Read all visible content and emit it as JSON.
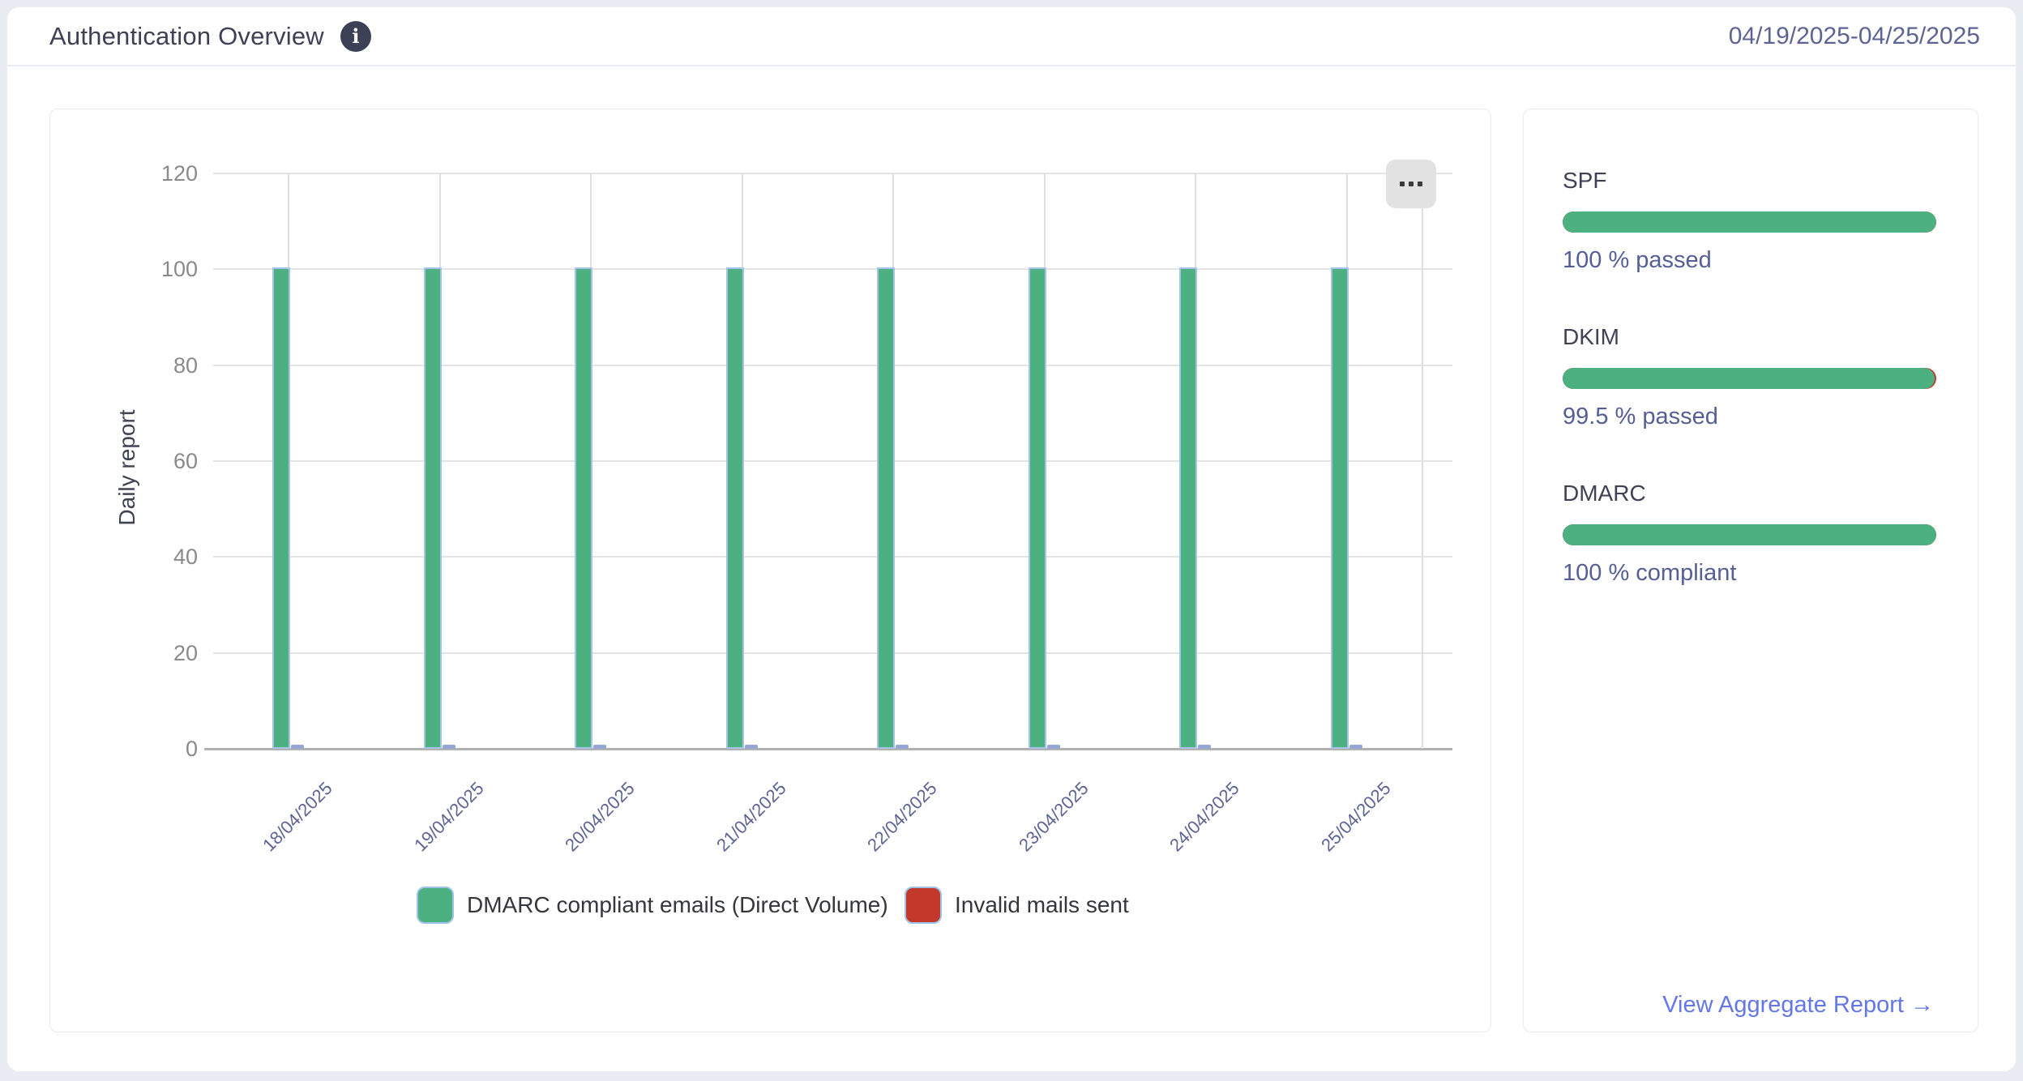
{
  "header": {
    "title": "Authentication Overview",
    "info_glyph": "i",
    "date_range": "04/19/2025-04/25/2025"
  },
  "chart_panel": {
    "legend": [
      {
        "label": "DMARC compliant emails (Direct Volume)",
        "color": "#4db080"
      },
      {
        "label": "Invalid mails sent",
        "color": "#c2382b"
      }
    ]
  },
  "chart_data": {
    "type": "bar",
    "title": "",
    "xlabel": "",
    "ylabel": "Daily report",
    "ylim": [
      0,
      120
    ],
    "y_ticks": [
      0,
      20,
      40,
      60,
      80,
      100,
      120
    ],
    "grid": true,
    "legend_position": "bottom",
    "categories": [
      "18/04/2025",
      "19/04/2025",
      "20/04/2025",
      "21/04/2025",
      "22/04/2025",
      "23/04/2025",
      "24/04/2025",
      "25/04/2025"
    ],
    "series": [
      {
        "name": "DMARC compliant emails (Direct Volume)",
        "color": "#4db080",
        "values": [
          100,
          100,
          100,
          100,
          100,
          100,
          100,
          100
        ]
      },
      {
        "name": "Invalid mails sent",
        "color": "#c2382b",
        "values": [
          0,
          0,
          0,
          0,
          0,
          0,
          0,
          0
        ]
      }
    ]
  },
  "sidebar": {
    "sections": [
      {
        "label": "SPF",
        "percent": 100,
        "caption": "100 % passed"
      },
      {
        "label": "DKIM",
        "percent": 99.5,
        "caption": "99.5 % passed"
      },
      {
        "label": "DMARC",
        "percent": 100,
        "caption": "100 % compliant"
      }
    ],
    "link": {
      "label": "View Aggregate Report",
      "arrow": "→"
    }
  },
  "colors": {
    "green": "#4db080",
    "red": "#c2382b",
    "bar_border": "#a7c4e8",
    "zero_bar": "#93a7d2",
    "slate": "#5d6494",
    "link": "#6377e7"
  }
}
